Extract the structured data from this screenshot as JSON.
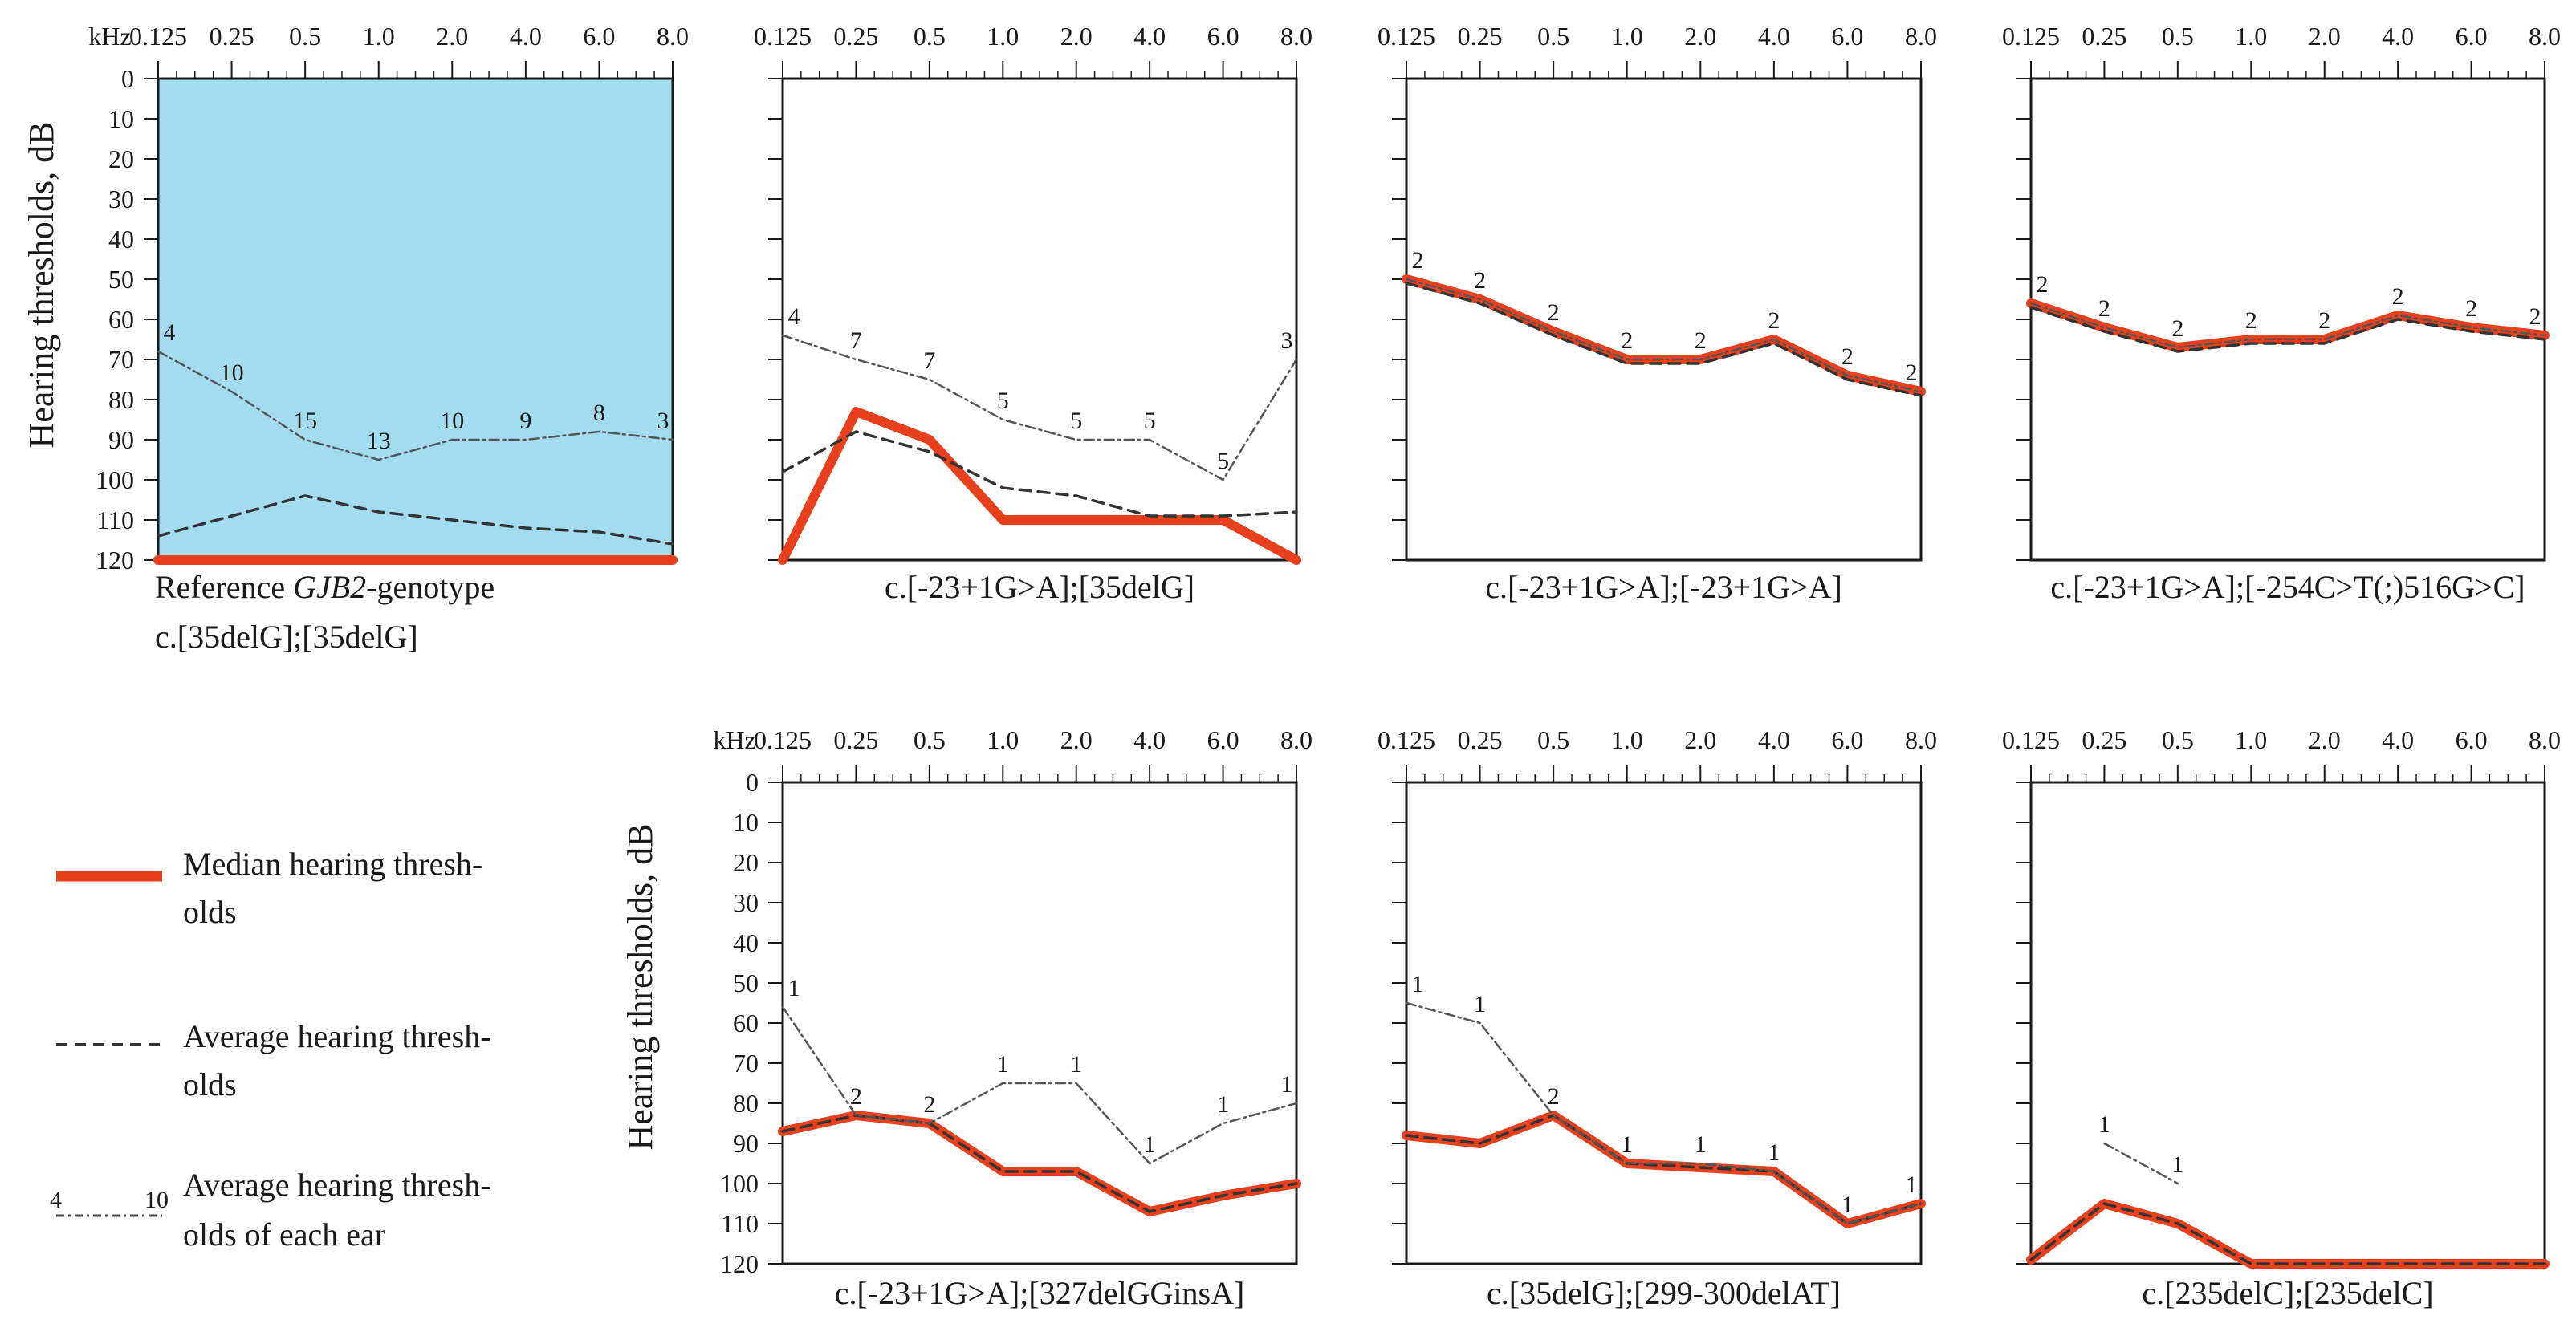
{
  "figure": {
    "y_axis_label": "Hearing thresholds, dB",
    "x_unit_label": "kHz"
  },
  "legend": {
    "median_label_line1": "Median hearing thresh-",
    "median_label_line2": "olds",
    "average_label_line1": "Average hearing thresh-",
    "average_label_line2": "olds",
    "each_ear_label_line1": "Average hearing thresh-",
    "each_ear_label_line2": "olds of each ear",
    "each_ear_example_left": "4",
    "each_ear_example_right": "10"
  },
  "colors": {
    "median": "#e8401c",
    "reference_bg": "#a3dcf0",
    "axis": "#1a1a1a",
    "dashed": "#333333",
    "gray_line": "#555555"
  },
  "chart_data": [
    {
      "type": "line",
      "caption_prefix": "Reference ",
      "caption_italic": "GJB2",
      "caption_suffix": "-genotype",
      "caption_line2": "c.[35delG];[35delG]",
      "highlight": true,
      "x_ticks": [
        "0.125",
        "0.25",
        "0.5",
        "1.0",
        "2.0",
        "4.0",
        "6.0",
        "8.0"
      ],
      "y_ticks": [
        "0",
        "10",
        "20",
        "30",
        "40",
        "50",
        "60",
        "70",
        "80",
        "90",
        "100",
        "110",
        "120"
      ],
      "ylim": [
        0,
        120
      ],
      "series": [
        {
          "name": "Median hearing thresholds",
          "values": [
            120,
            120,
            120,
            120,
            120,
            120,
            120,
            120
          ]
        },
        {
          "name": "Average hearing thresholds",
          "values": [
            114,
            109,
            104,
            108,
            110,
            112,
            113,
            116
          ]
        },
        {
          "name": "Average hearing thresholds of each ear",
          "values": [
            68,
            78,
            90,
            95,
            90,
            90,
            88,
            90
          ],
          "labels": [
            "4",
            "10",
            "15",
            "13",
            "10",
            "9",
            "8",
            "3"
          ]
        }
      ]
    },
    {
      "type": "line",
      "caption": "c.[-23+1G>A];[35delG]",
      "x_ticks": [
        "0.125",
        "0.25",
        "0.5",
        "1.0",
        "2.0",
        "4.0",
        "6.0",
        "8.0"
      ],
      "ylim": [
        0,
        120
      ],
      "series": [
        {
          "name": "Median hearing thresholds",
          "values": [
            120,
            83,
            90,
            110,
            110,
            110,
            110,
            120
          ]
        },
        {
          "name": "Average hearing thresholds",
          "values": [
            98,
            88,
            93,
            102,
            104,
            109,
            109,
            108
          ]
        },
        {
          "name": "Average hearing thresholds of each ear",
          "values": [
            64,
            70,
            75,
            85,
            90,
            90,
            100,
            70
          ],
          "labels": [
            "4",
            "7",
            "7",
            "5",
            "5",
            "5",
            "5",
            "3"
          ]
        }
      ]
    },
    {
      "type": "line",
      "caption": "c.[-23+1G>A];[-23+1G>A]",
      "x_ticks": [
        "0.125",
        "0.25",
        "0.5",
        "1.0",
        "2.0",
        "4.0",
        "6.0",
        "8.0"
      ],
      "ylim": [
        0,
        120
      ],
      "series": [
        {
          "name": "Median hearing thresholds",
          "values": [
            50,
            55,
            63,
            70,
            70,
            65,
            74,
            78
          ]
        },
        {
          "name": "Average hearing thresholds",
          "values": [
            51,
            56,
            64,
            71,
            71,
            66,
            75,
            79
          ]
        },
        {
          "name": "Average hearing thresholds of each ear",
          "values": [
            50,
            55,
            63,
            70,
            70,
            65,
            74,
            78
          ],
          "labels": [
            "2",
            "2",
            "2",
            "2",
            "2",
            "2",
            "2",
            "2"
          ]
        }
      ]
    },
    {
      "type": "line",
      "caption": "c.[-23+1G>A];[-254C>T(;)516G>C]",
      "x_ticks": [
        "0.125",
        "0.25",
        "0.5",
        "1.0",
        "2.0",
        "4.0",
        "6.0",
        "8.0"
      ],
      "ylim": [
        0,
        120
      ],
      "series": [
        {
          "name": "Median hearing thresholds",
          "values": [
            56,
            62,
            67,
            65,
            65,
            59,
            62,
            64
          ]
        },
        {
          "name": "Average hearing thresholds",
          "values": [
            57,
            63,
            68,
            66,
            66,
            60,
            63,
            65
          ]
        },
        {
          "name": "Average hearing thresholds of each ear",
          "values": [
            56,
            62,
            67,
            65,
            65,
            59,
            62,
            64
          ],
          "labels": [
            "2",
            "2",
            "2",
            "2",
            "2",
            "2",
            "2",
            "2"
          ]
        }
      ]
    },
    {
      "type": "line",
      "caption": "c.[-23+1G>A];[327delGGinsA]",
      "x_ticks": [
        "0.125",
        "0.25",
        "0.5",
        "1.0",
        "2.0",
        "4.0",
        "6.0",
        "8.0"
      ],
      "y_ticks": [
        "0",
        "10",
        "20",
        "30",
        "40",
        "50",
        "60",
        "70",
        "80",
        "90",
        "100",
        "110",
        "120"
      ],
      "ylim": [
        0,
        120
      ],
      "series": [
        {
          "name": "Median hearing thresholds",
          "values": [
            87,
            83,
            85,
            97,
            97,
            107,
            103,
            100
          ]
        },
        {
          "name": "Average hearing thresholds",
          "values": [
            87,
            83,
            85,
            97,
            97,
            107,
            103,
            100
          ]
        },
        {
          "name": "Average hearing thresholds of each ear",
          "values": [
            56,
            83,
            85,
            75,
            75,
            95,
            85,
            80
          ],
          "labels": [
            "1",
            "2",
            "2",
            "1",
            "1",
            "1",
            "1",
            "1"
          ]
        }
      ]
    },
    {
      "type": "line",
      "caption": "c.[35delG];[299-300delAT]",
      "x_ticks": [
        "0.125",
        "0.25",
        "0.5",
        "1.0",
        "2.0",
        "4.0",
        "6.0",
        "8.0"
      ],
      "ylim": [
        0,
        120
      ],
      "series": [
        {
          "name": "Median hearing thresholds",
          "values": [
            88,
            90,
            83,
            95,
            96,
            97,
            110,
            105
          ]
        },
        {
          "name": "Average hearing thresholds",
          "values": [
            88,
            90,
            83,
            95,
            96,
            97,
            110,
            105
          ]
        },
        {
          "name": "Average hearing thresholds of each ear",
          "values": [
            55,
            60,
            83,
            95,
            95,
            97,
            110,
            105
          ],
          "labels": [
            "1",
            "1",
            "2",
            "1",
            "1",
            "1",
            "1",
            "1"
          ]
        }
      ]
    },
    {
      "type": "line",
      "caption": "c.[235delC];[235delC]",
      "x_ticks": [
        "0.125",
        "0.25",
        "0.5",
        "1.0",
        "2.0",
        "4.0",
        "6.0",
        "8.0"
      ],
      "ylim": [
        0,
        120
      ],
      "series": [
        {
          "name": "Median hearing thresholds",
          "values": [
            119,
            105,
            110,
            120,
            120,
            120,
            120,
            120
          ]
        },
        {
          "name": "Average hearing thresholds",
          "values": [
            119,
            105,
            110,
            120,
            120,
            120,
            120,
            120
          ]
        },
        {
          "name": "Average hearing thresholds of each ear",
          "values": [
            null,
            90,
            100,
            null,
            null,
            null,
            null,
            null
          ],
          "labels": [
            "",
            "1",
            "1",
            "",
            "",
            "",
            "",
            ""
          ]
        }
      ]
    }
  ]
}
